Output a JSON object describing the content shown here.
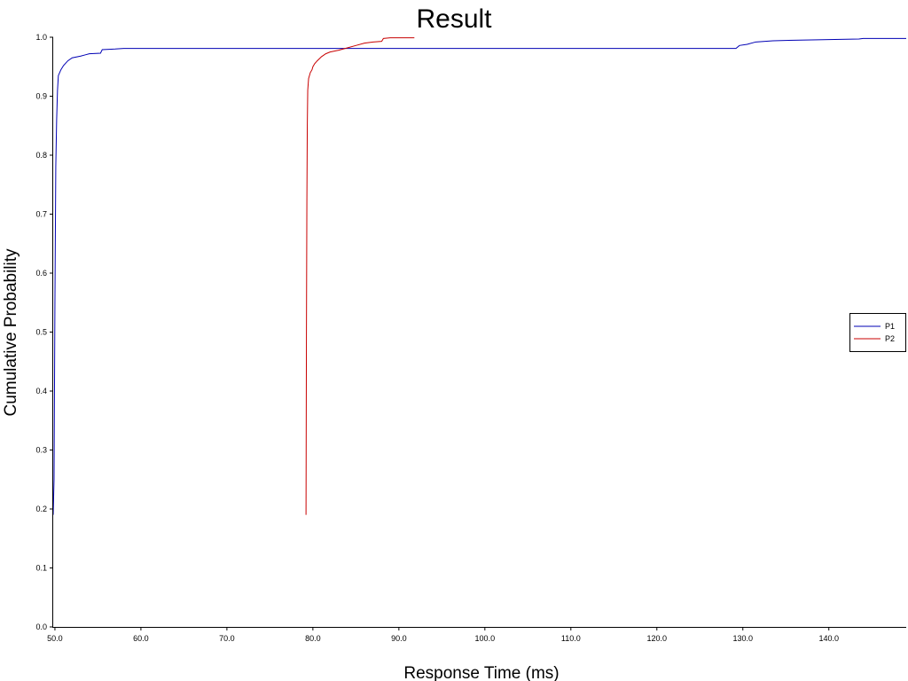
{
  "chart_data": {
    "type": "line",
    "title": "Result",
    "xlabel": "Response Time (ms)",
    "ylabel": "Cumulative Probability",
    "xlim": [
      49.8,
      149.0
    ],
    "ylim": [
      0.0,
      1.0
    ],
    "x_ticks": [
      50.0,
      60.0,
      70.0,
      80.0,
      90.0,
      100.0,
      110.0,
      120.0,
      130.0,
      140.0
    ],
    "x_tick_labels": [
      "50.0",
      "60.0",
      "70.0",
      "80.0",
      "90.0",
      "100.0",
      "110.0",
      "120.0",
      "130.0",
      "140.0"
    ],
    "y_ticks": [
      0.0,
      0.1,
      0.2,
      0.3,
      0.4,
      0.5,
      0.6,
      0.7,
      0.8,
      0.9,
      1.0
    ],
    "y_tick_labels": [
      "0.0",
      "0.1",
      "0.2",
      "0.3",
      "0.4",
      "0.5",
      "0.6",
      "0.7",
      "0.8",
      "0.9",
      "1.0"
    ],
    "grid": false,
    "legend": "right",
    "series": [
      {
        "name": "P1",
        "color": "#0000b4",
        "points": [
          [
            49.8,
            0.19
          ],
          [
            49.9,
            0.25
          ],
          [
            50.0,
            0.55
          ],
          [
            50.1,
            0.78
          ],
          [
            50.2,
            0.86
          ],
          [
            50.3,
            0.91
          ],
          [
            50.4,
            0.935
          ],
          [
            50.7,
            0.945
          ],
          [
            51.0,
            0.952
          ],
          [
            51.5,
            0.96
          ],
          [
            52.0,
            0.965
          ],
          [
            53.0,
            0.968
          ],
          [
            53.5,
            0.97
          ],
          [
            54.0,
            0.972
          ],
          [
            55.3,
            0.973
          ],
          [
            55.5,
            0.979
          ],
          [
            57.0,
            0.98
          ],
          [
            58.0,
            0.981
          ],
          [
            80.0,
            0.981
          ],
          [
            110.0,
            0.981
          ],
          [
            129.2,
            0.981
          ],
          [
            129.6,
            0.986
          ],
          [
            130.5,
            0.988
          ],
          [
            131.5,
            0.992
          ],
          [
            133.5,
            0.994
          ],
          [
            136.0,
            0.995
          ],
          [
            140.0,
            0.996
          ],
          [
            143.5,
            0.997
          ],
          [
            144.0,
            0.998
          ],
          [
            149.0,
            0.998
          ]
        ]
      },
      {
        "name": "P2",
        "color": "#c80000",
        "points": [
          [
            79.2,
            0.19
          ],
          [
            79.25,
            0.5
          ],
          [
            79.3,
            0.72
          ],
          [
            79.35,
            0.85
          ],
          [
            79.4,
            0.91
          ],
          [
            79.5,
            0.93
          ],
          [
            79.7,
            0.94
          ],
          [
            79.9,
            0.945
          ],
          [
            80.0,
            0.95
          ],
          [
            80.2,
            0.955
          ],
          [
            80.5,
            0.96
          ],
          [
            81.0,
            0.967
          ],
          [
            81.5,
            0.972
          ],
          [
            82.0,
            0.975
          ],
          [
            83.0,
            0.978
          ],
          [
            84.0,
            0.982
          ],
          [
            85.0,
            0.986
          ],
          [
            86.0,
            0.99
          ],
          [
            87.0,
            0.992
          ],
          [
            88.0,
            0.993
          ],
          [
            88.2,
            0.998
          ],
          [
            89.0,
            0.999
          ],
          [
            91.8,
            0.999
          ]
        ]
      }
    ]
  }
}
